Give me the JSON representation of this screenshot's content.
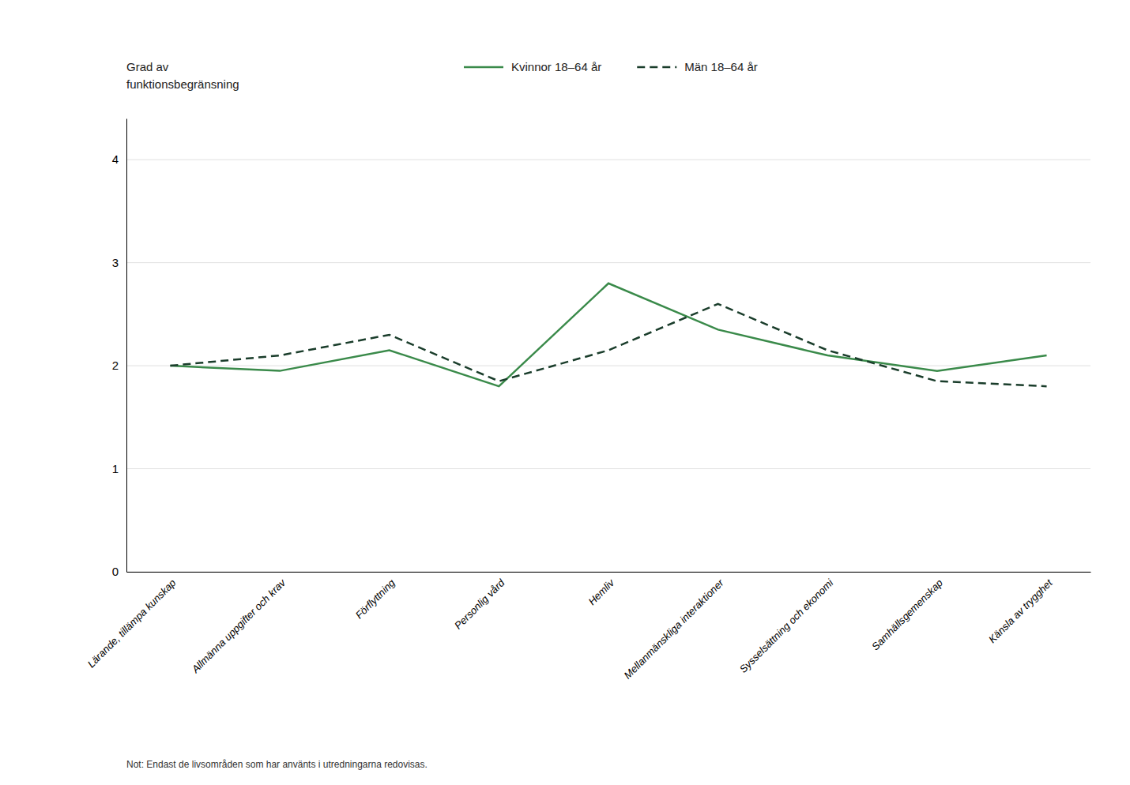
{
  "chart_data": {
    "type": "line",
    "categories": [
      "Lärande, tillämpa kunskap",
      "Allmänna uppgifter och krav",
      "Förflyttning",
      "Personlig vård",
      "Hemliv",
      "Mellanmänskliga interaktioner",
      "Sysselsättning och ekonomi",
      "Samhällsgemenskap",
      "Känsla av trygghet"
    ],
    "series": [
      {
        "name": "Kvinnor 18–64 år",
        "color": "#3a8a4a",
        "line_style": "solid",
        "values": [
          2.0,
          1.95,
          2.15,
          1.8,
          2.8,
          2.35,
          2.1,
          1.95,
          2.1
        ]
      },
      {
        "name": "Män 18–64 år",
        "color": "#1a3d2b",
        "line_style": "dashed",
        "values": [
          2.0,
          2.1,
          2.3,
          1.85,
          2.15,
          2.6,
          2.15,
          1.85,
          1.8
        ]
      }
    ],
    "ylabel": [
      "Grad av",
      "funktionsbegränsning"
    ],
    "annotations": [
      "Not: Endast de livsområden som har använts i utredningarna redovisas."
    ],
    "ylim": [
      0,
      4.4
    ],
    "yticks": [
      0,
      1,
      2,
      3,
      4
    ],
    "grid": true,
    "legend": "top"
  }
}
